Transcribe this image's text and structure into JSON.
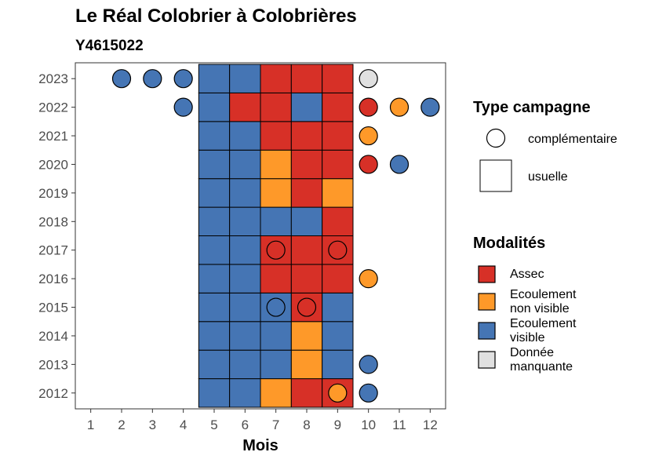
{
  "chart_data": {
    "type": "heatmap",
    "title": "Le Réal Colobrier à Colobrières",
    "subtitle": "Y4615022",
    "xlabel": "Mois",
    "ylabel": "",
    "x_ticks": [
      "1",
      "2",
      "3",
      "4",
      "5",
      "6",
      "7",
      "8",
      "9",
      "10",
      "11",
      "12"
    ],
    "y_categories": [
      "2012",
      "2013",
      "2014",
      "2015",
      "2016",
      "2017",
      "2018",
      "2019",
      "2020",
      "2021",
      "2022",
      "2023"
    ],
    "xlim": [
      0.5,
      12.5
    ],
    "colors": {
      "Assec": "#D73027",
      "Ecoulement non visible": "#FE9929",
      "Ecoulement visible": "#4575B4",
      "Donnée manquante": "#E0E0E0"
    },
    "usuelle": [
      {
        "year": "2012",
        "values": [
          "Ecoulement visible",
          "Ecoulement visible",
          "Ecoulement non visible",
          "Assec",
          "Assec"
        ]
      },
      {
        "year": "2013",
        "values": [
          "Ecoulement visible",
          "Ecoulement visible",
          "Ecoulement visible",
          "Ecoulement non visible",
          "Ecoulement visible"
        ]
      },
      {
        "year": "2014",
        "values": [
          "Ecoulement visible",
          "Ecoulement visible",
          "Ecoulement visible",
          "Ecoulement non visible",
          "Ecoulement visible"
        ]
      },
      {
        "year": "2015",
        "values": [
          "Ecoulement visible",
          "Ecoulement visible",
          "Ecoulement visible",
          "Assec",
          "Ecoulement visible"
        ]
      },
      {
        "year": "2016",
        "values": [
          "Ecoulement visible",
          "Ecoulement visible",
          "Assec",
          "Assec",
          "Assec"
        ]
      },
      {
        "year": "2017",
        "values": [
          "Ecoulement visible",
          "Ecoulement visible",
          "Assec",
          "Assec",
          "Assec"
        ]
      },
      {
        "year": "2018",
        "values": [
          "Ecoulement visible",
          "Ecoulement visible",
          "Ecoulement visible",
          "Ecoulement visible",
          "Assec"
        ]
      },
      {
        "year": "2019",
        "values": [
          "Ecoulement visible",
          "Ecoulement visible",
          "Ecoulement non visible",
          "Assec",
          "Ecoulement non visible"
        ]
      },
      {
        "year": "2020",
        "values": [
          "Ecoulement visible",
          "Ecoulement visible",
          "Ecoulement non visible",
          "Assec",
          "Assec"
        ]
      },
      {
        "year": "2021",
        "values": [
          "Ecoulement visible",
          "Ecoulement visible",
          "Assec",
          "Assec",
          "Assec"
        ]
      },
      {
        "year": "2022",
        "values": [
          "Ecoulement visible",
          "Assec",
          "Assec",
          "Ecoulement visible",
          "Assec"
        ]
      },
      {
        "year": "2023",
        "values": [
          "Ecoulement visible",
          "Ecoulement visible",
          "Assec",
          "Assec",
          "Assec"
        ]
      }
    ],
    "usuelle_months": [
      5,
      6,
      7,
      8,
      9
    ],
    "complementaire": [
      {
        "year": "2023",
        "month": 2,
        "value": "Ecoulement visible"
      },
      {
        "year": "2023",
        "month": 3,
        "value": "Ecoulement visible"
      },
      {
        "year": "2023",
        "month": 4,
        "value": "Ecoulement visible"
      },
      {
        "year": "2023",
        "month": 10,
        "value": "Donnée manquante"
      },
      {
        "year": "2022",
        "month": 4,
        "value": "Ecoulement visible"
      },
      {
        "year": "2022",
        "month": 10,
        "value": "Assec"
      },
      {
        "year": "2022",
        "month": 11,
        "value": "Ecoulement non visible"
      },
      {
        "year": "2022",
        "month": 12,
        "value": "Ecoulement visible"
      },
      {
        "year": "2021",
        "month": 10,
        "value": "Ecoulement non visible"
      },
      {
        "year": "2020",
        "month": 10,
        "value": "Assec"
      },
      {
        "year": "2020",
        "month": 11,
        "value": "Ecoulement visible"
      },
      {
        "year": "2017",
        "month": 7,
        "value": "Assec"
      },
      {
        "year": "2017",
        "month": 9,
        "value": "Assec"
      },
      {
        "year": "2016",
        "month": 10,
        "value": "Ecoulement non visible"
      },
      {
        "year": "2015",
        "month": 7,
        "value": "Ecoulement visible"
      },
      {
        "year": "2015",
        "month": 8,
        "value": "Assec"
      },
      {
        "year": "2013",
        "month": 10,
        "value": "Ecoulement visible"
      },
      {
        "year": "2012",
        "month": 9,
        "value": "Ecoulement non visible"
      },
      {
        "year": "2012",
        "month": 10,
        "value": "Ecoulement visible"
      }
    ],
    "legend": {
      "placement": "right",
      "type_title": "Type campagne",
      "type_items": [
        {
          "shape": "circle",
          "label": "complémentaire"
        },
        {
          "shape": "square",
          "label": "usuelle"
        }
      ],
      "modal_title": "Modalités",
      "modal_items": [
        {
          "key": "Assec",
          "lines": [
            "Assec"
          ]
        },
        {
          "key": "Ecoulement non visible",
          "lines": [
            "Ecoulement",
            "non visible"
          ]
        },
        {
          "key": "Ecoulement visible",
          "lines": [
            "Ecoulement",
            "visible"
          ]
        },
        {
          "key": "Donnée manquante",
          "lines": [
            "Donnée",
            "manquante"
          ]
        }
      ]
    }
  }
}
